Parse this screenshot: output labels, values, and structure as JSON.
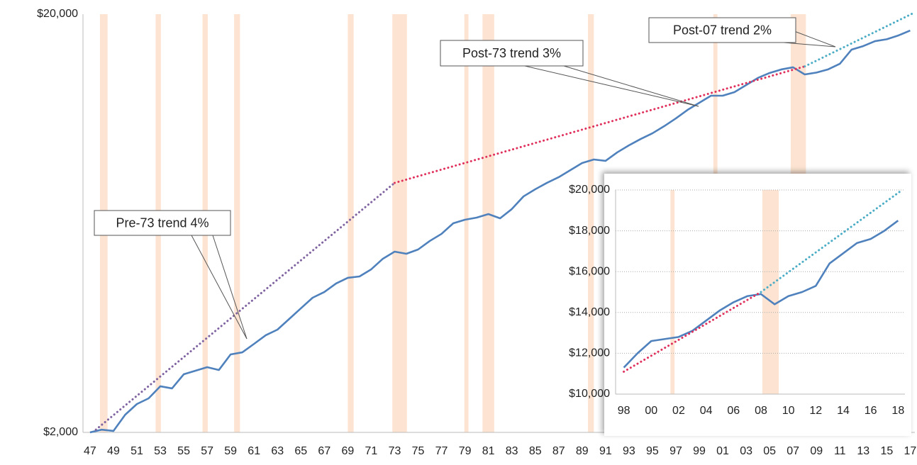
{
  "chart_data": [
    {
      "type": "line",
      "log_scale_y": true,
      "xlim": [
        1946.4,
        2017.4
      ],
      "ylim": [
        2000,
        20000
      ],
      "yticks": [
        {
          "value": 2000,
          "label": "$2,000"
        },
        {
          "value": 20000,
          "label": "$20,000"
        }
      ],
      "xticks": [
        {
          "value": 1947,
          "label": "47"
        },
        {
          "value": 1949,
          "label": "49"
        },
        {
          "value": 1951,
          "label": "51"
        },
        {
          "value": 1953,
          "label": "53"
        },
        {
          "value": 1955,
          "label": "55"
        },
        {
          "value": 1957,
          "label": "57"
        },
        {
          "value": 1959,
          "label": "59"
        },
        {
          "value": 1961,
          "label": "61"
        },
        {
          "value": 1963,
          "label": "63"
        },
        {
          "value": 1965,
          "label": "65"
        },
        {
          "value": 1967,
          "label": "67"
        },
        {
          "value": 1969,
          "label": "69"
        },
        {
          "value": 1971,
          "label": "71"
        },
        {
          "value": 1973,
          "label": "73"
        },
        {
          "value": 1975,
          "label": "75"
        },
        {
          "value": 1977,
          "label": "77"
        },
        {
          "value": 1979,
          "label": "79"
        },
        {
          "value": 1981,
          "label": "81"
        },
        {
          "value": 1983,
          "label": "83"
        },
        {
          "value": 1985,
          "label": "85"
        },
        {
          "value": 1987,
          "label": "87"
        },
        {
          "value": 1989,
          "label": "89"
        },
        {
          "value": 1991,
          "label": "91"
        },
        {
          "value": 1993,
          "label": "93"
        },
        {
          "value": 1995,
          "label": "95"
        },
        {
          "value": 1997,
          "label": "97"
        },
        {
          "value": 1999,
          "label": "99"
        },
        {
          "value": 2001,
          "label": "01"
        },
        {
          "value": 2003,
          "label": "03"
        },
        {
          "value": 2005,
          "label": "05"
        },
        {
          "value": 2007,
          "label": "07"
        },
        {
          "value": 2009,
          "label": "09"
        },
        {
          "value": 2011,
          "label": "11"
        },
        {
          "value": 2013,
          "label": "13"
        },
        {
          "value": 2015,
          "label": "15"
        },
        {
          "value": 2017,
          "label": "17"
        }
      ],
      "grid": false,
      "shade_color": "#fde4d2",
      "shaded_periods": [
        [
          1947.85,
          1948.5
        ],
        [
          1952.6,
          1953.05
        ],
        [
          1956.6,
          1957.05
        ],
        [
          1959.3,
          1959.8
        ],
        [
          1969.0,
          1969.5
        ],
        [
          1972.8,
          1974.05
        ],
        [
          1978.95,
          1979.3
        ],
        [
          1980.5,
          1981.5
        ],
        [
          1989.5,
          1990.0
        ],
        [
          2000.2,
          2000.55
        ],
        [
          2006.8,
          2008.1
        ]
      ],
      "series": [
        {
          "color": "#4f81bd",
          "style": "solid",
          "x": [
            1947,
            1948,
            1949,
            1950,
            1951,
            1952,
            1953,
            1954,
            1955,
            1956,
            1957,
            1958,
            1959,
            1960,
            1961,
            1962,
            1963,
            1964,
            1965,
            1966,
            1967,
            1968,
            1969,
            1970,
            1971,
            1972,
            1973,
            1974,
            1975,
            1976,
            1977,
            1978,
            1979,
            1980,
            1981,
            1982,
            1983,
            1984,
            1985,
            1986,
            1987,
            1988,
            1989,
            1990,
            1991,
            1992,
            1993,
            1994,
            1995,
            1996,
            1997,
            1998,
            1999,
            2000,
            2001,
            2002,
            2003,
            2004,
            2005,
            2006,
            2007,
            2008,
            2009,
            2010,
            2011,
            2012,
            2013,
            2014,
            2015,
            2016,
            2017
          ],
          "values": [
            2000,
            2030,
            2016,
            2204,
            2338,
            2412,
            2578,
            2548,
            2754,
            2808,
            2864,
            2820,
            3072,
            3108,
            3256,
            3414,
            3522,
            3734,
            3960,
            4198,
            4332,
            4540,
            4684,
            4720,
            4908,
            5204,
            5410,
            5348,
            5474,
            5738,
            5966,
            6324,
            6450,
            6526,
            6654,
            6500,
            6840,
            7334,
            7628,
            7902,
            8152,
            8476,
            8814,
            8986,
            8918,
            9346,
            9716,
            10060,
            10380,
            10794,
            11268,
            11808,
            12278,
            12768,
            12768,
            13020,
            13538,
            14078,
            14468,
            14754,
            14928,
            14354,
            14500,
            14760,
            15222,
            16458,
            16780,
            17240,
            17420,
            17792,
            18280
          ]
        },
        {
          "color": "#8064a2",
          "style": "dotted",
          "x": [
            1947.5,
            1973
          ],
          "values": [
            2030,
            7900
          ]
        },
        {
          "color": "#e0305c",
          "style": "dotted",
          "x": [
            1973,
            2008
          ],
          "values": [
            7900,
            15000
          ]
        },
        {
          "color": "#4bacc6",
          "style": "dotted",
          "x": [
            2008,
            2017.4
          ],
          "values": [
            15000,
            20200
          ]
        }
      ],
      "annotations": [
        "Pre-73 trend 4%",
        "Post-73 trend 3%",
        "Post-07 trend 2%"
      ]
    },
    {
      "type": "line",
      "log_scale_y": false,
      "xlim": [
        1997.4,
        2018.5
      ],
      "ylim": [
        10000,
        20000
      ],
      "yticks": [
        {
          "value": 10000,
          "label": "$10,000"
        },
        {
          "value": 12000,
          "label": "$12,000"
        },
        {
          "value": 14000,
          "label": "$14,000"
        },
        {
          "value": 16000,
          "label": "$16,000"
        },
        {
          "value": 18000,
          "label": "$18,000"
        },
        {
          "value": 20000,
          "label": "$20,000"
        }
      ],
      "xticks": [
        {
          "value": 1998,
          "label": "98"
        },
        {
          "value": 2000,
          "label": "00"
        },
        {
          "value": 2002,
          "label": "02"
        },
        {
          "value": 2004,
          "label": "04"
        },
        {
          "value": 2006,
          "label": "06"
        },
        {
          "value": 2008,
          "label": "08"
        },
        {
          "value": 2010,
          "label": "10"
        },
        {
          "value": 2012,
          "label": "12"
        },
        {
          "value": 2014,
          "label": "14"
        },
        {
          "value": 2016,
          "label": "16"
        },
        {
          "value": 2018,
          "label": "18"
        }
      ],
      "grid": true,
      "shade_color": "#fde4d2",
      "shaded_periods": [
        [
          2001.4,
          2001.7
        ],
        [
          2008.1,
          2009.3
        ]
      ],
      "series": [
        {
          "color": "#4f81bd",
          "style": "solid",
          "x": [
            1998,
            1999,
            2000,
            2001,
            2002,
            2003,
            2004,
            2005,
            2006,
            2007,
            2008,
            2009,
            2010,
            2011,
            2012,
            2013,
            2014,
            2015,
            2016,
            2017,
            2018
          ],
          "values": [
            11300,
            12000,
            12600,
            12700,
            12800,
            13100,
            13600,
            14100,
            14500,
            14800,
            14900,
            14400,
            14800,
            15000,
            15300,
            16400,
            16900,
            17400,
            17600,
            18000,
            18500
          ]
        },
        {
          "color": "#e0305c",
          "style": "dotted",
          "x": [
            1998,
            2008
          ],
          "values": [
            11100,
            15000
          ]
        },
        {
          "color": "#4bacc6",
          "style": "dotted",
          "x": [
            2008,
            2018.3
          ],
          "values": [
            15000,
            20000
          ]
        }
      ]
    }
  ]
}
